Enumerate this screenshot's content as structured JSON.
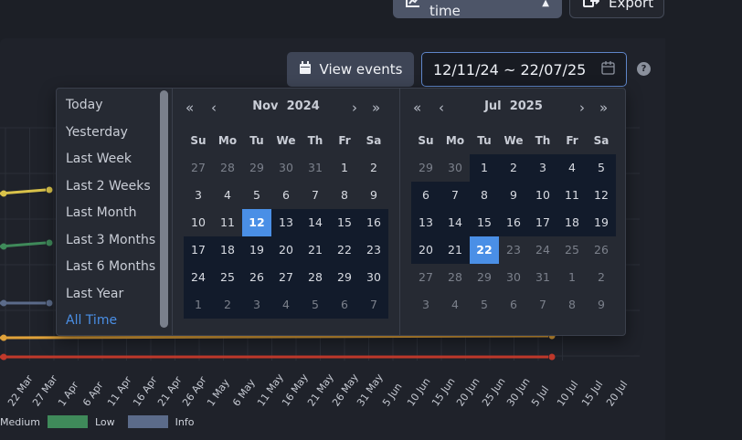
{
  "header": {
    "risks_button": "Risks over time",
    "export_button": "Export"
  },
  "toolbar": {
    "view_events": "View events",
    "date_range": "12/11/24 ~ 22/07/25"
  },
  "colors": {
    "accent": "#4a8fe6",
    "medium": "#e0a23a",
    "low": "#3f8a5a",
    "info": "#5b6b8a"
  },
  "chart_data": {
    "type": "line",
    "x_tick_labels": [
      "22 Mar",
      "27 Mar",
      "1 Apr",
      "6 Apr",
      "11 Apr",
      "16 Apr",
      "21 Apr",
      "26 Apr",
      "1 May",
      "6 May",
      "11 May",
      "16 May",
      "21 May",
      "26 May",
      "31 May",
      "5 Jun",
      "10 Jun",
      "15 Jun",
      "20 Jun",
      "25 Jun",
      "30 Jun",
      "5 Jul",
      "10 Jul",
      "15 Jul",
      "20 Jul"
    ],
    "legend": [
      "Medium",
      "Low",
      "Info"
    ]
  },
  "presets": [
    "Today",
    "Yesterday",
    "Last Week",
    "Last 2 Weeks",
    "Last Month",
    "Last 3 Months",
    "Last 6 Months",
    "Last Year",
    "All Time"
  ],
  "calendar_left": {
    "nav_prev_year": "«",
    "nav_prev": "‹",
    "month": "Nov",
    "year": "2024",
    "nav_next": "›",
    "nav_next_year": "»",
    "weekdays": [
      "Su",
      "Mo",
      "Tu",
      "We",
      "Th",
      "Fr",
      "Sa"
    ],
    "days": [
      [
        "27",
        "28",
        "29",
        "30",
        "31",
        "1",
        "2"
      ],
      [
        "3",
        "4",
        "5",
        "6",
        "7",
        "8",
        "9"
      ],
      [
        "10",
        "11",
        "12",
        "13",
        "14",
        "15",
        "16"
      ],
      [
        "17",
        "18",
        "19",
        "20",
        "21",
        "22",
        "23"
      ],
      [
        "24",
        "25",
        "26",
        "27",
        "28",
        "29",
        "30"
      ],
      [
        "1",
        "2",
        "3",
        "4",
        "5",
        "6",
        "7"
      ]
    ]
  },
  "calendar_right": {
    "nav_prev_year": "«",
    "nav_prev": "‹",
    "month": "Jul",
    "year": "2025",
    "nav_next": "›",
    "nav_next_year": "»",
    "weekdays": [
      "Su",
      "Mo",
      "Tu",
      "We",
      "Th",
      "Fr",
      "Sa"
    ],
    "days": [
      [
        "29",
        "30",
        "1",
        "2",
        "3",
        "4",
        "5"
      ],
      [
        "6",
        "7",
        "8",
        "9",
        "10",
        "11",
        "12"
      ],
      [
        "13",
        "14",
        "15",
        "16",
        "17",
        "18",
        "19"
      ],
      [
        "20",
        "21",
        "22",
        "23",
        "24",
        "25",
        "26"
      ],
      [
        "27",
        "28",
        "29",
        "30",
        "31",
        "1",
        "2"
      ],
      [
        "3",
        "4",
        "5",
        "6",
        "7",
        "8",
        "9"
      ]
    ]
  }
}
